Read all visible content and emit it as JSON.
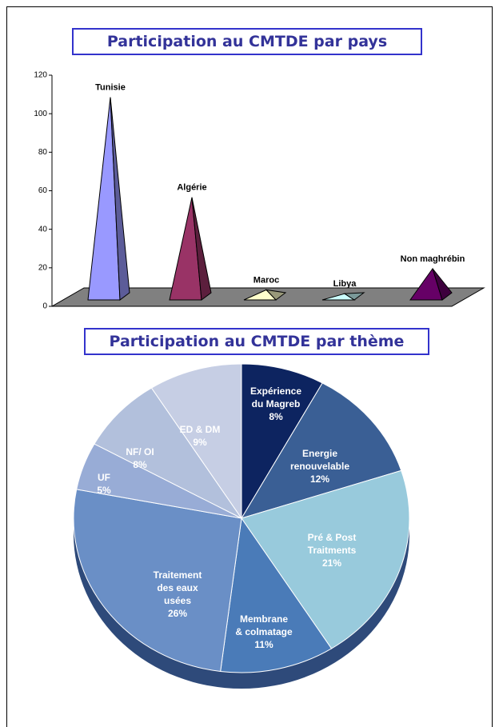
{
  "chart_data": [
    {
      "type": "bar",
      "title": "Participation au CMTDE par pays",
      "categories": [
        "Tunisie",
        "Algérie",
        "Maroc",
        "Libya",
        "Non maghrébin"
      ],
      "values": [
        104,
        52,
        4,
        2,
        15
      ],
      "colors": [
        "#9999ff",
        "#993366",
        "#ffffcc",
        "#ccffff",
        "#660066"
      ],
      "ylim": [
        0,
        120
      ],
      "yticks": [
        0,
        20,
        40,
        60,
        80,
        100,
        120
      ]
    },
    {
      "type": "pie",
      "title": "Participation au CMTDE par thème",
      "categories": [
        "Expérience\ndu Magreb",
        "Energie\nrenouvelable",
        "Pré & Post\nTraitments",
        "Membrane\n& colmatage",
        "Traitement\ndes eaux\nusées",
        "UF",
        "NF/ OI",
        "ED &  DM"
      ],
      "values": [
        8,
        12,
        21,
        11,
        26,
        5,
        8,
        9
      ],
      "value_labels": [
        "8%",
        "12%",
        "21%",
        "11%",
        "26%",
        "5%",
        "8%",
        "9%"
      ],
      "colors": [
        "#0d2460",
        "#3a5f95",
        "#98cadc",
        "#4a7bb8",
        "#6a8fc6",
        "#98acd6",
        "#b2c0dc",
        "#c6cee4"
      ]
    }
  ]
}
